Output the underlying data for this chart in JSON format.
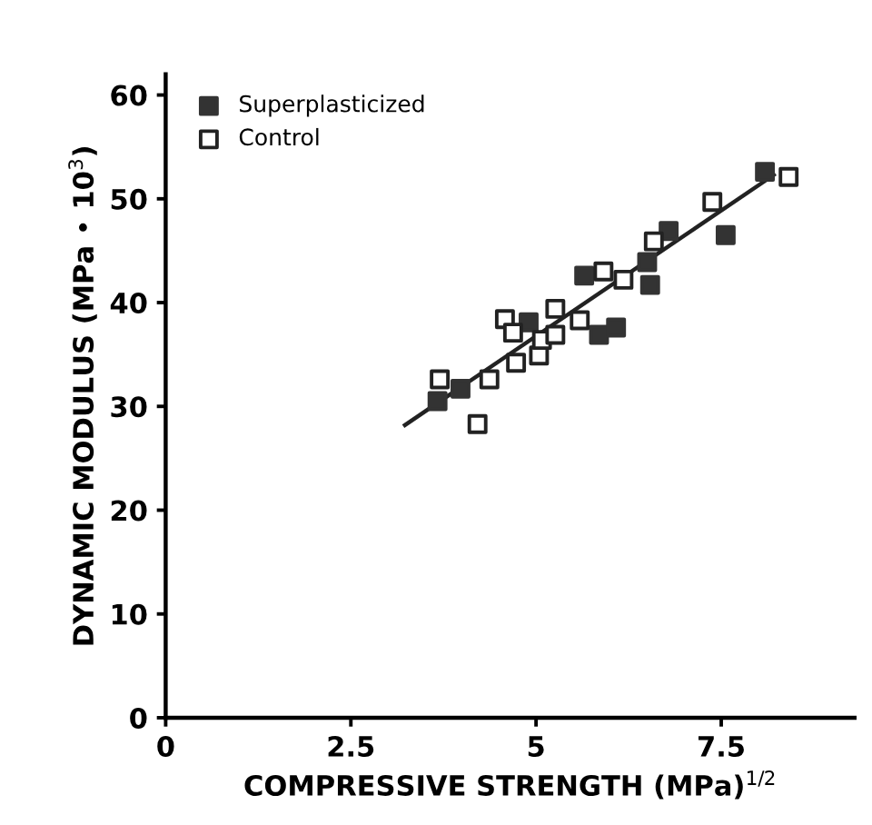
{
  "chart_data": {
    "type": "scatter",
    "xlabel": "COMPRESSIVE STRENGTH (MPa)$^{1/2}$",
    "ylabel": "DYNAMIC MODULUS (MPa • 10$^{3}$)",
    "xlim": [
      0,
      9.3
    ],
    "ylim": [
      0,
      62
    ],
    "xticks": [
      0,
      2.5,
      5,
      7.5
    ],
    "yticks": [
      0,
      10,
      20,
      30,
      40,
      50,
      60
    ],
    "grid": false,
    "legend": "top left",
    "series": [
      {
        "name": "Superplasticized",
        "color": "#333333",
        "marker": "square",
        "x": [
          3.67,
          3.98,
          4.9,
          5.65,
          5.85,
          6.08,
          6.5,
          6.54,
          6.79,
          7.56,
          8.09
        ],
        "values": [
          30.5,
          31.7,
          38.1,
          42.6,
          36.9,
          37.6,
          43.9,
          41.7,
          46.9,
          46.5,
          52.6
        ]
      },
      {
        "name": "Control",
        "color": "#222222",
        "marker": "square",
        "x": [
          3.7,
          4.21,
          4.37,
          4.58,
          4.69,
          4.73,
          5.04,
          5.08,
          5.26,
          5.26,
          5.59,
          5.91,
          6.18,
          6.59,
          7.38,
          8.41
        ],
        "values": [
          32.6,
          28.3,
          32.6,
          38.4,
          37.1,
          34.2,
          34.9,
          36.4,
          36.9,
          39.4,
          38.3,
          43.0,
          42.2,
          45.9,
          49.7,
          52.1
        ]
      },
      {
        "type": "line",
        "color": "#222222",
        "x": [
          3.23,
          8.21
        ],
        "values": [
          28.2,
          52.3
        ]
      }
    ]
  }
}
